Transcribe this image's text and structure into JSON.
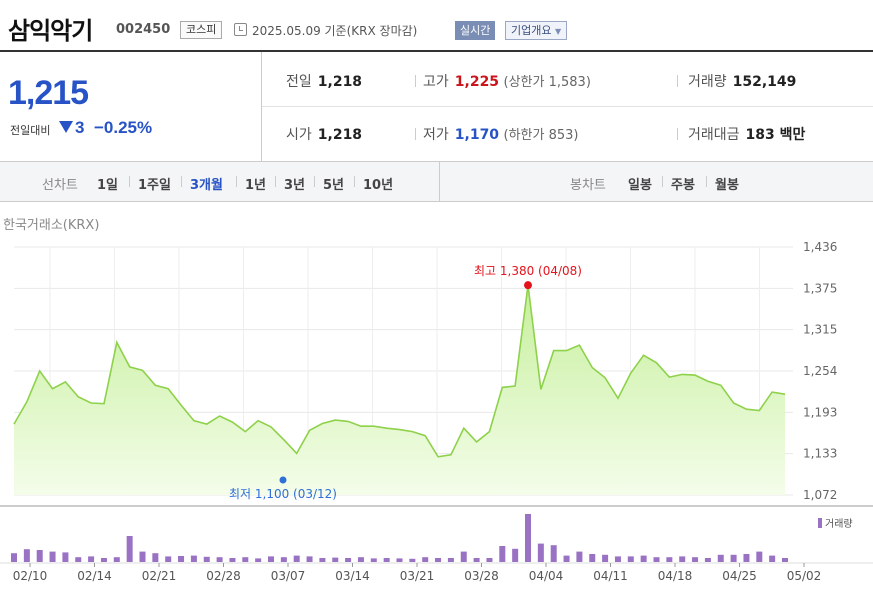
{
  "header": {
    "company_name": "삼익악기",
    "code": "002450",
    "market": "코스피",
    "datetime": "2025.05.09  기준(KRX 장마감)",
    "realtime_label": "실시간",
    "corp_info_label": "기업개요"
  },
  "quote": {
    "current_price": "1,215",
    "change_label": "전일대비",
    "change_amount": "3",
    "change_rate": "−0.25%",
    "prev_close_label": "전일",
    "prev_close": "1,218",
    "high_label": "고가",
    "high": "1,225",
    "upper_limit": "(상한가 1,583)",
    "volume_label": "거래량",
    "volume": "152,149",
    "open_label": "시가",
    "open": "1,218",
    "low_label": "저가",
    "low": "1,170",
    "lower_limit": "(하한가 853)",
    "amount_label": "거래대금",
    "amount": "183 백만"
  },
  "tabs": {
    "line_chart_label": "선차트",
    "periods": [
      "1일",
      "1주일",
      "3개월",
      "1년",
      "3년",
      "5년",
      "10년"
    ],
    "active_period": "3개월",
    "candle_chart_label": "봉차트",
    "candles": [
      "일봉",
      "주봉",
      "월봉"
    ]
  },
  "exchange_label": "한국거래소(KRX)",
  "colors": {
    "price_line": "#8ed14b",
    "area_fill": "#dff7c6",
    "volume_bar": "#9a72c4",
    "high_marker": "#e3141c",
    "low_marker": "#2f6fd6"
  },
  "chart_data": {
    "type": "area",
    "y_ticks": [
      "1,436",
      "1,375",
      "1,315",
      "1,254",
      "1,193",
      "1,133",
      "1,072"
    ],
    "ylim": [
      1072,
      1436
    ],
    "x_ticks": [
      "02/10",
      "02/14",
      "02/21",
      "02/28",
      "03/07",
      "03/14",
      "03/21",
      "03/28",
      "04/04",
      "04/11",
      "04/18",
      "04/25",
      "05/02"
    ],
    "prices": [
      1176,
      1209,
      1254,
      1228,
      1238,
      1216,
      1207,
      1206,
      1296,
      1260,
      1255,
      1233,
      1228,
      1204,
      1181,
      1176,
      1188,
      1179,
      1165,
      1181,
      1172,
      1153,
      1133,
      1167,
      1177,
      1182,
      1180,
      1173,
      1173,
      1170,
      1168,
      1165,
      1159,
      1128,
      1131,
      1170,
      1150,
      1165,
      1230,
      1232,
      1380,
      1227,
      1284,
      1284,
      1292,
      1259,
      1244,
      1214,
      1251,
      1277,
      1266,
      1245,
      1249,
      1248,
      1239,
      1233,
      1207,
      1198,
      1196,
      1223,
      1220
    ],
    "volumes": [
      2.2,
      3.2,
      3.0,
      2.6,
      2.4,
      1.2,
      1.4,
      1.0,
      1.2,
      6.5,
      2.6,
      2.2,
      1.4,
      1.5,
      1.6,
      1.3,
      1.2,
      1.0,
      1.2,
      0.9,
      1.4,
      1.2,
      1.6,
      1.4,
      1.0,
      1.1,
      1.0,
      1.2,
      0.9,
      1.0,
      0.9,
      0.8,
      1.2,
      1.0,
      1.0,
      2.6,
      1.0,
      1.0,
      4.0,
      3.3,
      12.0,
      4.6,
      4.2,
      1.6,
      2.6,
      2.0,
      1.8,
      1.4,
      1.4,
      1.6,
      1.2,
      1.2,
      1.4,
      1.2,
      1.0,
      1.8,
      1.8,
      2.0,
      2.6,
      1.6,
      1.0
    ],
    "high_annotation": {
      "label": "최고 1,380 (04/08)",
      "index": 40
    },
    "low_annotation": {
      "label": "최저 1,100 (03/12)"
    },
    "volume_legend": "거래량",
    "grid": true
  }
}
